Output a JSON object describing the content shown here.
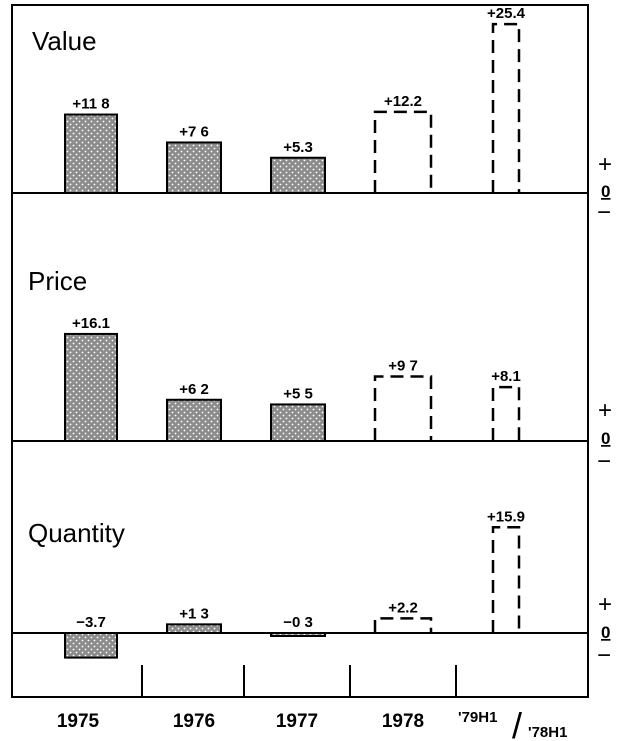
{
  "chart_data": {
    "type": "bar",
    "categories": [
      "1975",
      "1976",
      "1977",
      "1978",
      "'79H1/'78H1"
    ],
    "category_parts": {
      "c5a": "'79H1",
      "c5sep": "/",
      "c5b": "'78H1"
    },
    "panels": [
      {
        "title": "Value",
        "values": [
          11.8,
          7.6,
          5.3,
          12.2,
          25.4
        ],
        "labels": [
          "+11 8",
          "+7 6",
          "+5.3",
          "+12.2",
          "+25.4"
        ],
        "estimated": [
          false,
          false,
          false,
          true,
          true
        ]
      },
      {
        "title": "Price",
        "values": [
          16.1,
          6.2,
          5.5,
          9.7,
          8.1
        ],
        "labels": [
          "+16.1",
          "+6 2",
          "+5 5",
          "+9 7",
          "+8.1"
        ],
        "estimated": [
          false,
          false,
          false,
          true,
          true
        ]
      },
      {
        "title": "Quantity",
        "values": [
          -3.7,
          1.3,
          -0.3,
          2.2,
          15.9
        ],
        "labels": [
          "−3.7",
          "+1 3",
          "−0 3",
          "+2.2",
          "+15.9"
        ],
        "estimated": [
          false,
          false,
          false,
          true,
          true
        ]
      }
    ],
    "sign_markers": {
      "plus": "+",
      "zero": "0",
      "minus": "−"
    },
    "styles": {
      "actual": "stippled",
      "estimated": "dashed outline"
    },
    "colors": {
      "fill": "#8c8c8c",
      "line": "#000000",
      "background": "#ffffff"
    }
  }
}
